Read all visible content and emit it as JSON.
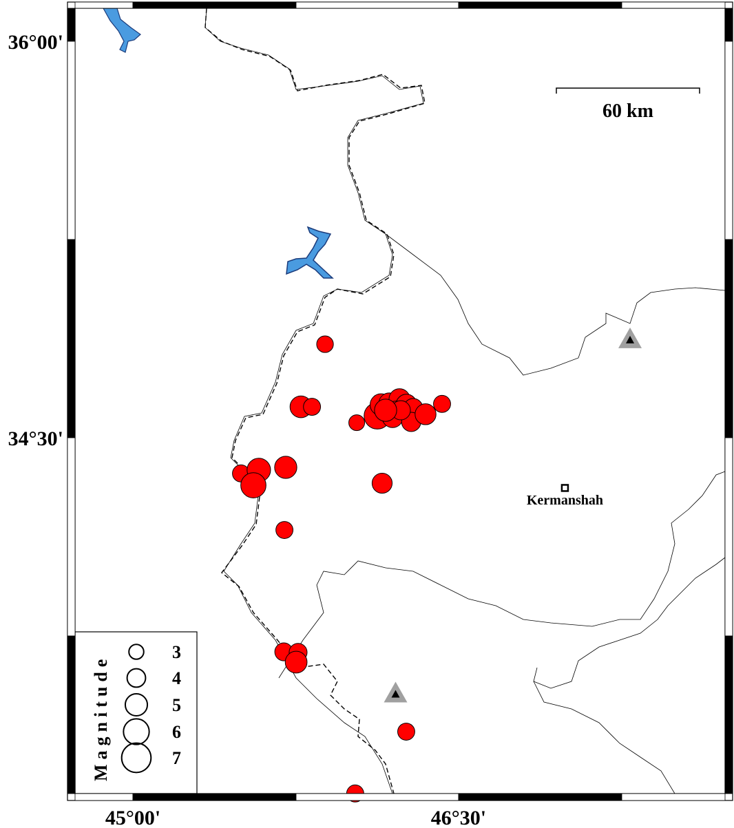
{
  "map": {
    "lon_ticks": [
      {
        "value": 45.0,
        "label": "45°00'"
      },
      {
        "value": 46.5,
        "label": "46°30'"
      }
    ],
    "lat_ticks": [
      {
        "value": 36.0,
        "label": "36°00'"
      },
      {
        "value": 34.5,
        "label": "34°30'"
      }
    ],
    "scale_bar": {
      "label": "60 km"
    },
    "city": {
      "name": "Kermanshah",
      "lon": 46.99,
      "lat": 34.31
    },
    "stations": [
      {
        "lon": 47.29,
        "lat": 34.87
      },
      {
        "lon": 46.21,
        "lat": 33.53
      }
    ],
    "colors": {
      "event": "#ff0000",
      "water": "#4a9be0",
      "station": "#a0a0a0"
    },
    "legend": {
      "title": "Magnitude",
      "items": [
        {
          "mag": 3,
          "label": "3"
        },
        {
          "mag": 4,
          "label": "4"
        },
        {
          "mag": 5,
          "label": "5"
        },
        {
          "mag": 6,
          "label": "6"
        },
        {
          "mag": 7,
          "label": "7"
        }
      ]
    },
    "events": [
      {
        "lon": 45.885,
        "lat": 34.854,
        "mag": 3.2
      },
      {
        "lon": 45.774,
        "lat": 34.617,
        "mag": 4.4
      },
      {
        "lon": 45.825,
        "lat": 34.617,
        "mag": 3.3
      },
      {
        "lon": 46.031,
        "lat": 34.557,
        "mag": 3.0
      },
      {
        "lon": 46.126,
        "lat": 34.583,
        "mag": 5.5
      },
      {
        "lon": 46.143,
        "lat": 34.625,
        "mag": 4.4
      },
      {
        "lon": 46.181,
        "lat": 34.63,
        "mag": 4.2
      },
      {
        "lon": 46.228,
        "lat": 34.646,
        "mag": 4.2
      },
      {
        "lon": 46.26,
        "lat": 34.625,
        "mag": 4.2
      },
      {
        "lon": 46.291,
        "lat": 34.612,
        "mag": 3.8
      },
      {
        "lon": 46.212,
        "lat": 34.599,
        "mag": 4.2
      },
      {
        "lon": 46.196,
        "lat": 34.578,
        "mag": 4.2
      },
      {
        "lon": 46.282,
        "lat": 34.56,
        "mag": 3.8
      },
      {
        "lon": 46.348,
        "lat": 34.589,
        "mag": 4.2
      },
      {
        "lon": 46.234,
        "lat": 34.604,
        "mag": 3.8
      },
      {
        "lon": 46.164,
        "lat": 34.604,
        "mag": 4.5
      },
      {
        "lon": 46.424,
        "lat": 34.628,
        "mag": 3.3
      },
      {
        "lon": 45.498,
        "lat": 34.365,
        "mag": 3.3
      },
      {
        "lon": 45.58,
        "lat": 34.378,
        "mag": 4.8
      },
      {
        "lon": 45.555,
        "lat": 34.32,
        "mag": 5.2
      },
      {
        "lon": 45.704,
        "lat": 34.388,
        "mag": 4.5
      },
      {
        "lon": 46.148,
        "lat": 34.328,
        "mag": 4.0
      },
      {
        "lon": 45.698,
        "lat": 34.151,
        "mag": 3.3
      },
      {
        "lon": 45.695,
        "lat": 33.69,
        "mag": 3.5
      },
      {
        "lon": 45.761,
        "lat": 33.688,
        "mag": 3.5
      },
      {
        "lon": 45.752,
        "lat": 33.651,
        "mag": 4.4
      },
      {
        "lon": 46.259,
        "lat": 33.388,
        "mag": 3.3
      },
      {
        "lon": 46.024,
        "lat": 33.154,
        "mag": 3.3
      }
    ]
  }
}
